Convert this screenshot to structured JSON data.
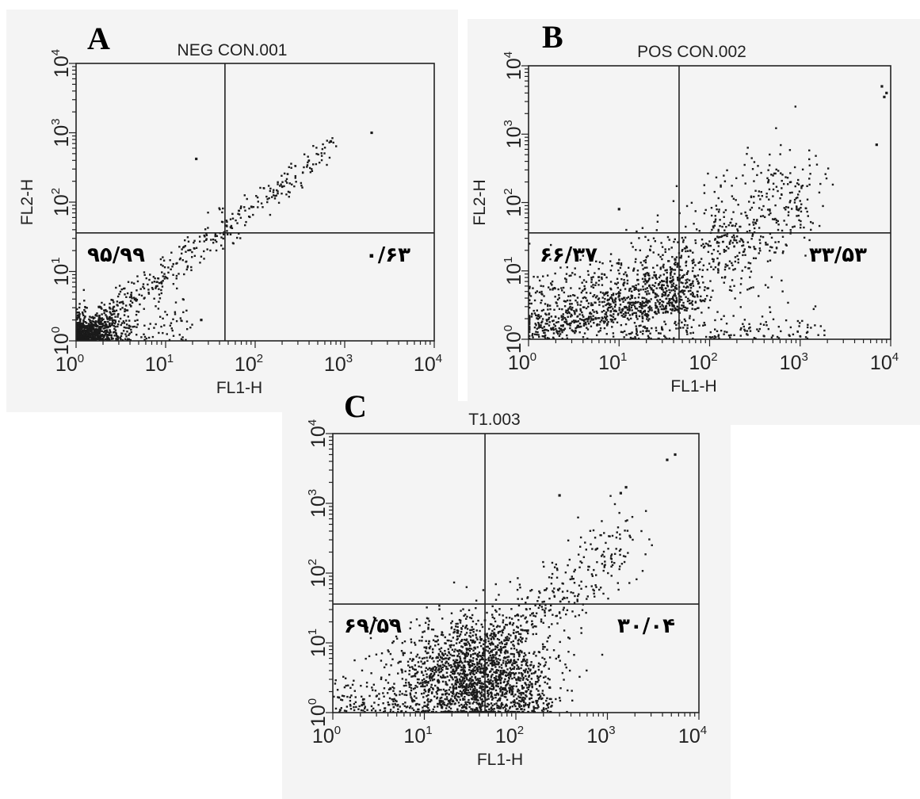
{
  "chart_data": [
    {
      "type": "scatter",
      "panel_label": "A",
      "title": "NEG CON.001",
      "xlabel": "FL1-H",
      "ylabel": "FL2-H",
      "x_scale": "log",
      "y_scale": "log",
      "xlim": [
        1,
        10000
      ],
      "ylim": [
        1,
        10000
      ],
      "x_ticks": [
        {
          "base": "10",
          "exp": "0"
        },
        {
          "base": "10",
          "exp": "1"
        },
        {
          "base": "10",
          "exp": "2"
        },
        {
          "base": "10",
          "exp": "3"
        },
        {
          "base": "10",
          "exp": "4"
        }
      ],
      "y_ticks": [
        {
          "base": "10",
          "exp": "0"
        },
        {
          "base": "10",
          "exp": "1"
        },
        {
          "base": "10",
          "exp": "2"
        },
        {
          "base": "10",
          "exp": "3"
        },
        {
          "base": "10",
          "exp": "4"
        }
      ],
      "gate": {
        "x": 46,
        "y": 36
      },
      "quadrant_labels": {
        "lower_left": "۹۵/۹۹",
        "lower_right": "۰/۶۳"
      },
      "population": "diagonal band from about (1, 1) to (700, 700); dense cluster at (1–3, 1–2)",
      "outliers": [
        [
          2000,
          1000
        ],
        [
          22,
          420
        ],
        [
          700,
          750
        ],
        [
          25,
          2
        ]
      ]
    },
    {
      "type": "scatter",
      "panel_label": "B",
      "title": "POS CON.002",
      "xlabel": "FL1-H",
      "ylabel": "FL2-H",
      "x_scale": "log",
      "y_scale": "log",
      "xlim": [
        1,
        10000
      ],
      "ylim": [
        1,
        10000
      ],
      "x_ticks": [
        {
          "base": "10",
          "exp": "0"
        },
        {
          "base": "10",
          "exp": "1"
        },
        {
          "base": "10",
          "exp": "2"
        },
        {
          "base": "10",
          "exp": "3"
        },
        {
          "base": "10",
          "exp": "4"
        }
      ],
      "y_ticks": [
        {
          "base": "10",
          "exp": "0"
        },
        {
          "base": "10",
          "exp": "1"
        },
        {
          "base": "10",
          "exp": "2"
        },
        {
          "base": "10",
          "exp": "3"
        },
        {
          "base": "10",
          "exp": "4"
        }
      ],
      "gate": {
        "x": 46,
        "y": 36
      },
      "quadrant_labels": {
        "lower_left": "۶۶/۳۷",
        "lower_right": "۳۳/۵۳"
      },
      "population": "broad cloud from (1–50, 1–10) rising to (300–3000, 100–1000)",
      "outliers": [
        [
          8000,
          5000
        ],
        [
          9000,
          4000
        ],
        [
          8500,
          3500
        ],
        [
          10,
          80
        ],
        [
          7000,
          700
        ]
      ]
    },
    {
      "type": "scatter",
      "panel_label": "C",
      "title": "T1.003",
      "xlabel": "FL1-H",
      "ylabel": "",
      "x_scale": "log",
      "y_scale": "log",
      "xlim": [
        1,
        10000
      ],
      "ylim": [
        1,
        10000
      ],
      "x_ticks": [
        {
          "base": "10",
          "exp": "0"
        },
        {
          "base": "10",
          "exp": "1"
        },
        {
          "base": "10",
          "exp": "2"
        },
        {
          "base": "10",
          "exp": "3"
        },
        {
          "base": "10",
          "exp": "4"
        }
      ],
      "y_ticks": [
        {
          "base": "10",
          "exp": "0"
        },
        {
          "base": "10",
          "exp": "1"
        },
        {
          "base": "10",
          "exp": "2"
        },
        {
          "base": "10",
          "exp": "3"
        },
        {
          "base": "10",
          "exp": "4"
        }
      ],
      "gate": {
        "x": 46,
        "y": 36
      },
      "quadrant_labels": {
        "lower_left": "۶۹/۵۹",
        "lower_right": "۳۰/۰۴"
      },
      "population": "dense cloud centred near (30–50, 2–10) with diagonal tail to (1500, 1500)",
      "outliers": [
        [
          5500,
          5000
        ],
        [
          4500,
          4200
        ],
        [
          1600,
          1700
        ],
        [
          1400,
          1400
        ],
        [
          300,
          1300
        ]
      ]
    }
  ]
}
